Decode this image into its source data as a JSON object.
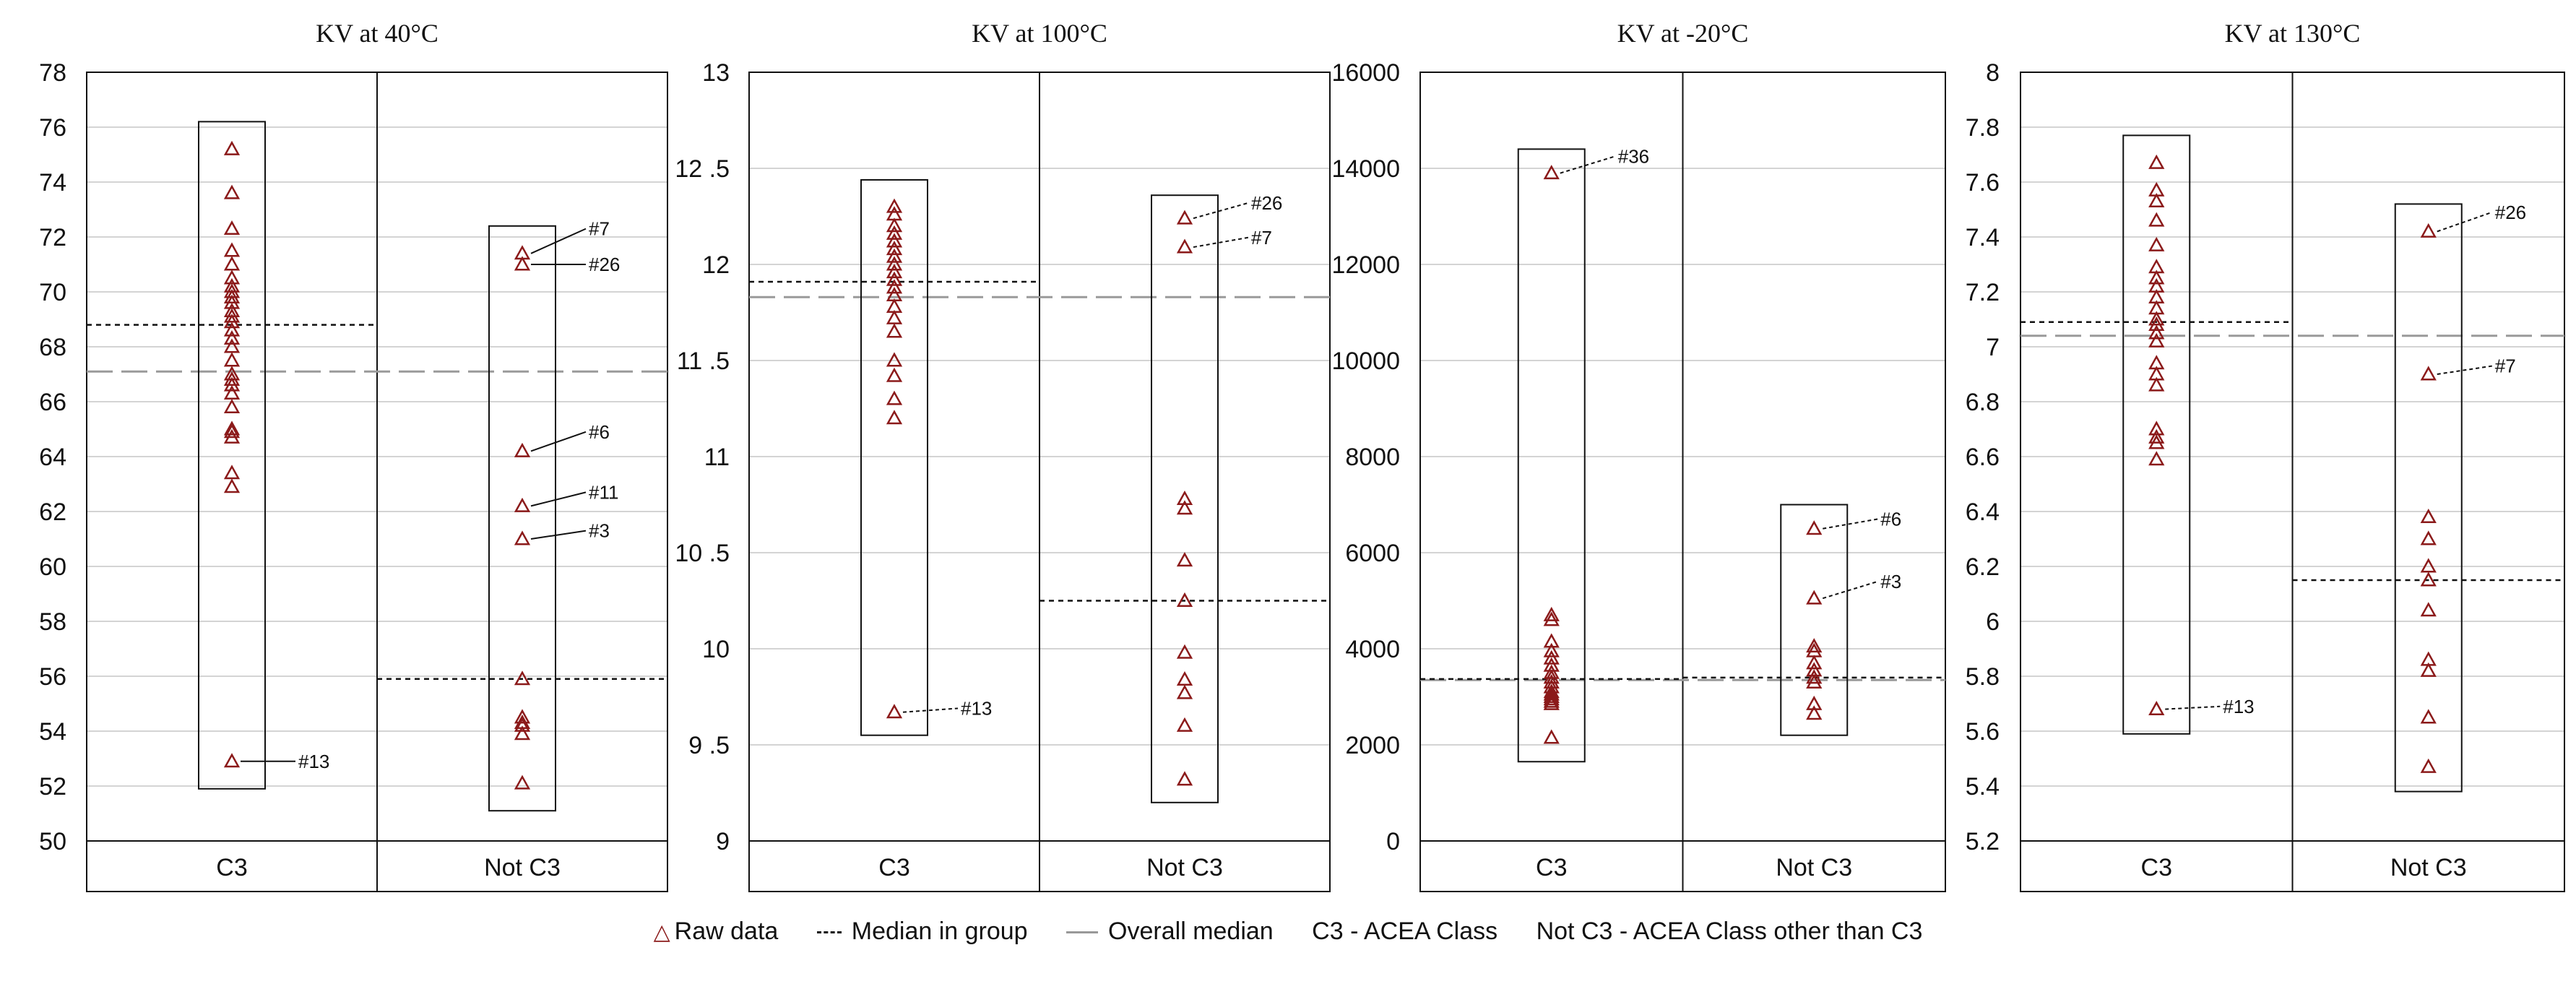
{
  "chart_data": [
    {
      "type": "scatter",
      "title": "KV at 40°C",
      "categories": [
        "C3",
        "Not C3"
      ],
      "ylim": [
        50,
        78
      ],
      "yticks": [
        50,
        52,
        54,
        56,
        58,
        60,
        62,
        64,
        66,
        68,
        70,
        72,
        74,
        76,
        78
      ],
      "grid": true,
      "overall_median": 67.1,
      "groups": [
        {
          "name": "C3",
          "box": [
            51.9,
            76.2
          ],
          "median": 68.8,
          "values": [
            52.9,
            62.9,
            63.4,
            64.7,
            64.9,
            65.0,
            65.8,
            66.3,
            66.6,
            66.8,
            67.0,
            67.5,
            68.0,
            68.3,
            68.6,
            68.9,
            69.1,
            69.3,
            69.6,
            69.8,
            70.0,
            70.2,
            70.5,
            71.0,
            71.5,
            72.3,
            73.6,
            75.2
          ]
        },
        {
          "name": "Not C3",
          "box": [
            51.1,
            72.4
          ],
          "median": 55.9,
          "values": [
            52.1,
            53.9,
            54.2,
            54.3,
            54.5,
            55.9,
            61.0,
            62.2,
            64.2,
            71.0,
            71.4
          ]
        }
      ],
      "annotations": [
        {
          "label": "#13",
          "group": 0,
          "value": 52.9
        },
        {
          "label": "#7",
          "group": 1,
          "value": 71.4,
          "label_value": 72.3
        },
        {
          "label": "#26",
          "group": 1,
          "value": 71.0,
          "label_value": 71.0
        },
        {
          "label": "#6",
          "group": 1,
          "value": 64.2,
          "label_value": 64.9
        },
        {
          "label": "#11",
          "group": 1,
          "value": 62.2,
          "label_value": 62.7
        },
        {
          "label": "#3",
          "group": 1,
          "value": 61.0,
          "label_value": 61.3
        }
      ]
    },
    {
      "type": "scatter",
      "title": "KV at 100°C",
      "categories": [
        "C3",
        "Not C3"
      ],
      "ylim": [
        9,
        13
      ],
      "yticks": [
        9,
        9.5,
        10,
        10.5,
        11,
        11.5,
        12,
        12.5,
        13
      ],
      "ytick_labels": [
        "9",
        "9 .5",
        "10",
        "10 .5",
        "11",
        "11 .5",
        "12",
        "12 .5",
        "13"
      ],
      "grid": true,
      "overall_median": 11.83,
      "groups": [
        {
          "name": "C3",
          "box": [
            9.55,
            12.44
          ],
          "median": 11.91,
          "values": [
            9.67,
            11.2,
            11.3,
            11.42,
            11.5,
            11.65,
            11.72,
            11.78,
            11.84,
            11.88,
            11.92,
            11.96,
            12.0,
            12.04,
            12.08,
            12.12,
            12.16,
            12.2,
            12.26,
            12.3
          ]
        },
        {
          "name": "Not C3",
          "box": [
            9.2,
            12.36
          ],
          "median": 10.25,
          "values": [
            9.32,
            9.6,
            9.77,
            9.84,
            9.98,
            10.25,
            10.46,
            10.73,
            10.78,
            12.09,
            12.24
          ]
        }
      ],
      "annotations": [
        {
          "label": "#13",
          "group": 0,
          "value": 9.67,
          "label_value": 9.69
        },
        {
          "label": "#26",
          "group": 1,
          "value": 12.24,
          "label_value": 12.32
        },
        {
          "label": "#7",
          "group": 1,
          "value": 12.09,
          "label_value": 12.14
        }
      ]
    },
    {
      "type": "scatter",
      "title": "KV at -20°C",
      "categories": [
        "C3",
        "Not C3"
      ],
      "ylim": [
        0,
        16000
      ],
      "yticks": [
        0,
        2000,
        4000,
        6000,
        8000,
        10000,
        12000,
        14000,
        16000
      ],
      "grid": true,
      "overall_median": 3350,
      "groups": [
        {
          "name": "C3",
          "box": [
            1650,
            14400
          ],
          "median": 3370,
          "values": [
            2150,
            2850,
            2900,
            2950,
            3000,
            3050,
            3100,
            3200,
            3300,
            3400,
            3500,
            3650,
            3800,
            3950,
            4150,
            4600,
            4700,
            13900
          ]
        },
        {
          "name": "Not C3",
          "box": [
            2200,
            7000
          ],
          "median": 3400,
          "values": [
            2650,
            2850,
            3300,
            3400,
            3550,
            3700,
            3950,
            4050,
            5050,
            6500
          ]
        }
      ],
      "annotations": [
        {
          "label": "#36",
          "group": 0,
          "value": 13900,
          "label_value": 14250
        },
        {
          "label": "#6",
          "group": 1,
          "value": 6500,
          "label_value": 6700
        },
        {
          "label": "#3",
          "group": 1,
          "value": 5050,
          "label_value": 5400
        }
      ]
    },
    {
      "type": "scatter",
      "title": "KV at 130°C",
      "categories": [
        "C3",
        "Not C3"
      ],
      "ylim": [
        5.2,
        8
      ],
      "yticks": [
        5.2,
        5.4,
        5.6,
        5.8,
        6,
        6.2,
        6.4,
        6.6,
        6.8,
        7,
        7.2,
        7.4,
        7.6,
        7.8,
        8
      ],
      "grid": true,
      "overall_median": 7.04,
      "group_median_line": 7.09,
      "groups": [
        {
          "name": "C3",
          "box": [
            5.59,
            7.77
          ],
          "median": 7.09,
          "values": [
            5.68,
            6.59,
            6.65,
            6.67,
            6.7,
            6.86,
            6.9,
            6.94,
            7.02,
            7.05,
            7.08,
            7.1,
            7.14,
            7.18,
            7.22,
            7.25,
            7.29,
            7.37,
            7.46,
            7.53,
            7.57,
            7.67
          ]
        },
        {
          "name": "Not C3",
          "box": [
            5.38,
            7.52
          ],
          "median": 6.15,
          "values": [
            5.47,
            5.65,
            5.82,
            5.86,
            6.04,
            6.15,
            6.2,
            6.3,
            6.38,
            6.9,
            7.42
          ]
        }
      ],
      "annotations": [
        {
          "label": "#13",
          "group": 0,
          "value": 5.68,
          "label_value": 5.69
        },
        {
          "label": "#26",
          "group": 1,
          "value": 7.42,
          "label_value": 7.49
        },
        {
          "label": "#7",
          "group": 1,
          "value": 6.9,
          "label_value": 6.93
        }
      ]
    }
  ],
  "legend": {
    "raw_data": "Raw data",
    "median_in_group": "Median in group",
    "overall_median": "Overall median",
    "c3_def": "C3 - ACEA Class",
    "not_c3_def": "Not C3 - ACEA Class other than C3"
  },
  "colors": {
    "marker": "#8b1a1a",
    "grid": "#d4d4d4",
    "overall_median": "#9a9a9a",
    "median_in_group": "#111111"
  }
}
